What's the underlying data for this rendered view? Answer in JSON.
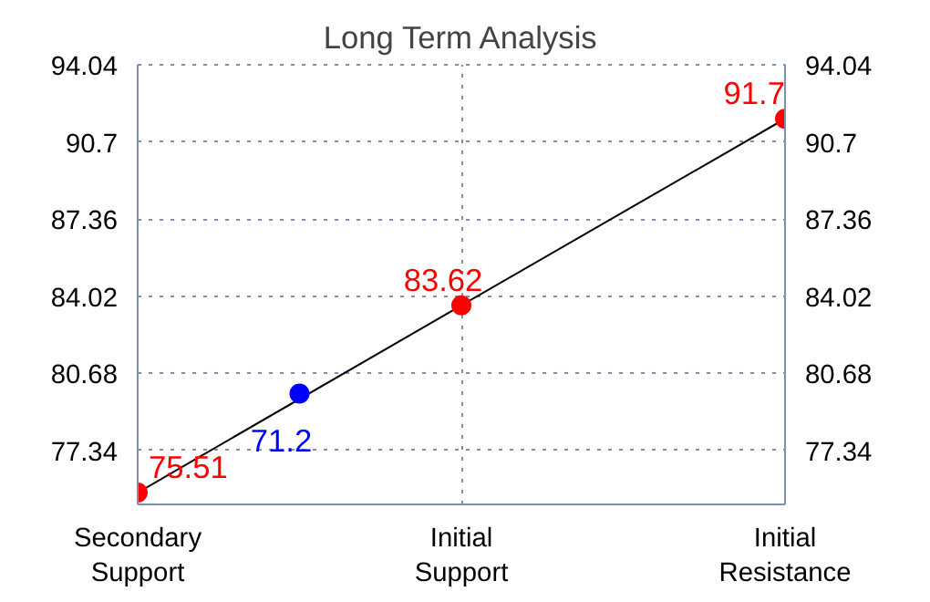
{
  "chart_data": {
    "type": "line",
    "title": "Long Term Analysis",
    "categories": [
      "Secondary\nSupport",
      null,
      "Initial\nSupport",
      null,
      "Initial\nResistance"
    ],
    "ylim": [
      75.0,
      94.04
    ],
    "yticks": [
      77.34,
      80.68,
      84.02,
      87.36,
      90.7,
      94.04
    ],
    "y2lim": [
      75.0,
      94.04
    ],
    "y2ticks": [
      77.34,
      80.68,
      84.02,
      87.36,
      90.7,
      94.04
    ],
    "grid": true,
    "annotations": [
      "71.2"
    ],
    "series": [
      {
        "color": "#000000",
        "values": [
          75.51,
          null,
          83.62,
          null,
          91.7
        ],
        "marker": "none"
      },
      {
        "type": "scatter",
        "color": "#ff0000",
        "values": [
          75.51,
          null,
          83.62,
          null,
          91.7
        ],
        "value_labels": [
          "75.51",
          null,
          "83.62",
          null,
          "91.7"
        ],
        "marker": "circle"
      },
      {
        "type": "scatter",
        "color": "#0000ff",
        "values": [
          null,
          79.8,
          null,
          null,
          null
        ],
        "marker": "circle"
      }
    ]
  }
}
